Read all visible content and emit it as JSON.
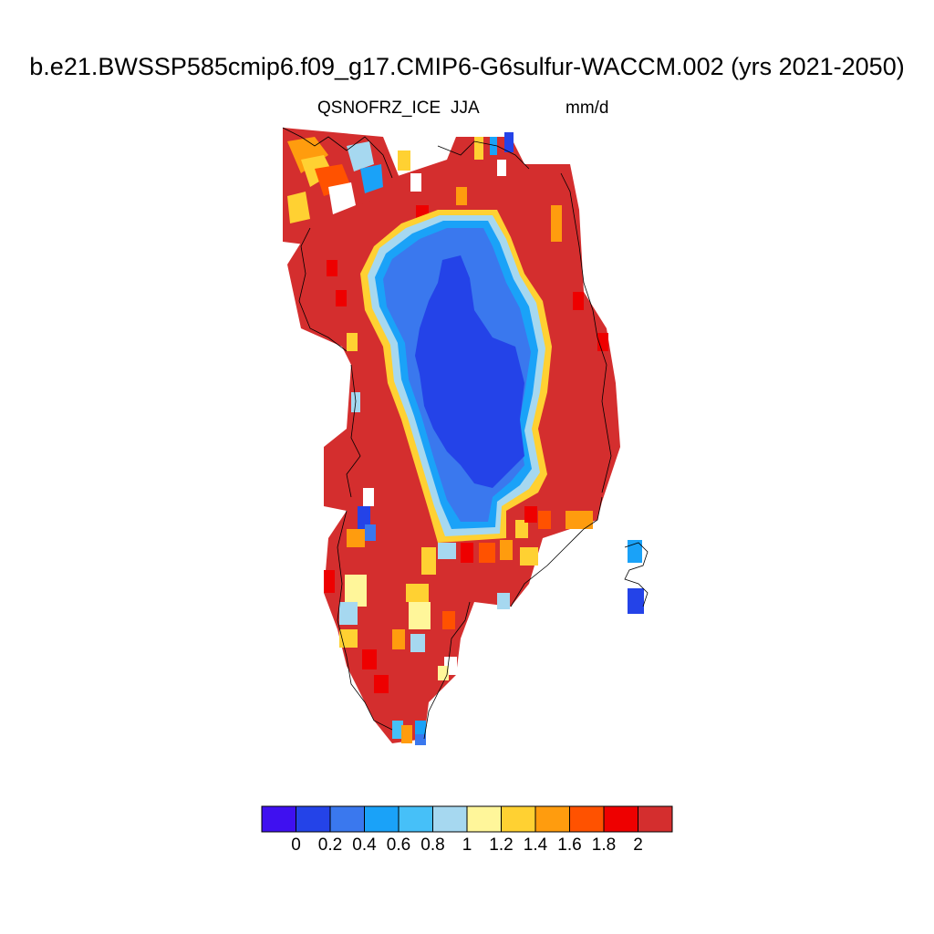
{
  "title": "b.e21.BWSSP585cmip6.f09_g17.CMIP6-G6sulfur-WACCM.002 (yrs 2021-2050)",
  "variable": "QSNOFRZ_ICE",
  "season": "JJA",
  "units": "mm/d",
  "colorbar": {
    "colors": [
      "#3f10f0",
      "#2443e8",
      "#3a78ee",
      "#1aa2f8",
      "#46c0f8",
      "#a6d8f0",
      "#fff69a",
      "#ffd132",
      "#ff9c0e",
      "#ff5200",
      "#ee0000",
      "#d42e2e"
    ],
    "ticks": [
      "0",
      "0.2",
      "0.4",
      "0.6",
      "0.8",
      "1",
      "1.2",
      "1.4",
      "1.6",
      "1.8",
      "2"
    ]
  },
  "map": {
    "region": "Greenland",
    "note": "field shown as colored grid cells; inland low (blue), margins high (red)"
  }
}
